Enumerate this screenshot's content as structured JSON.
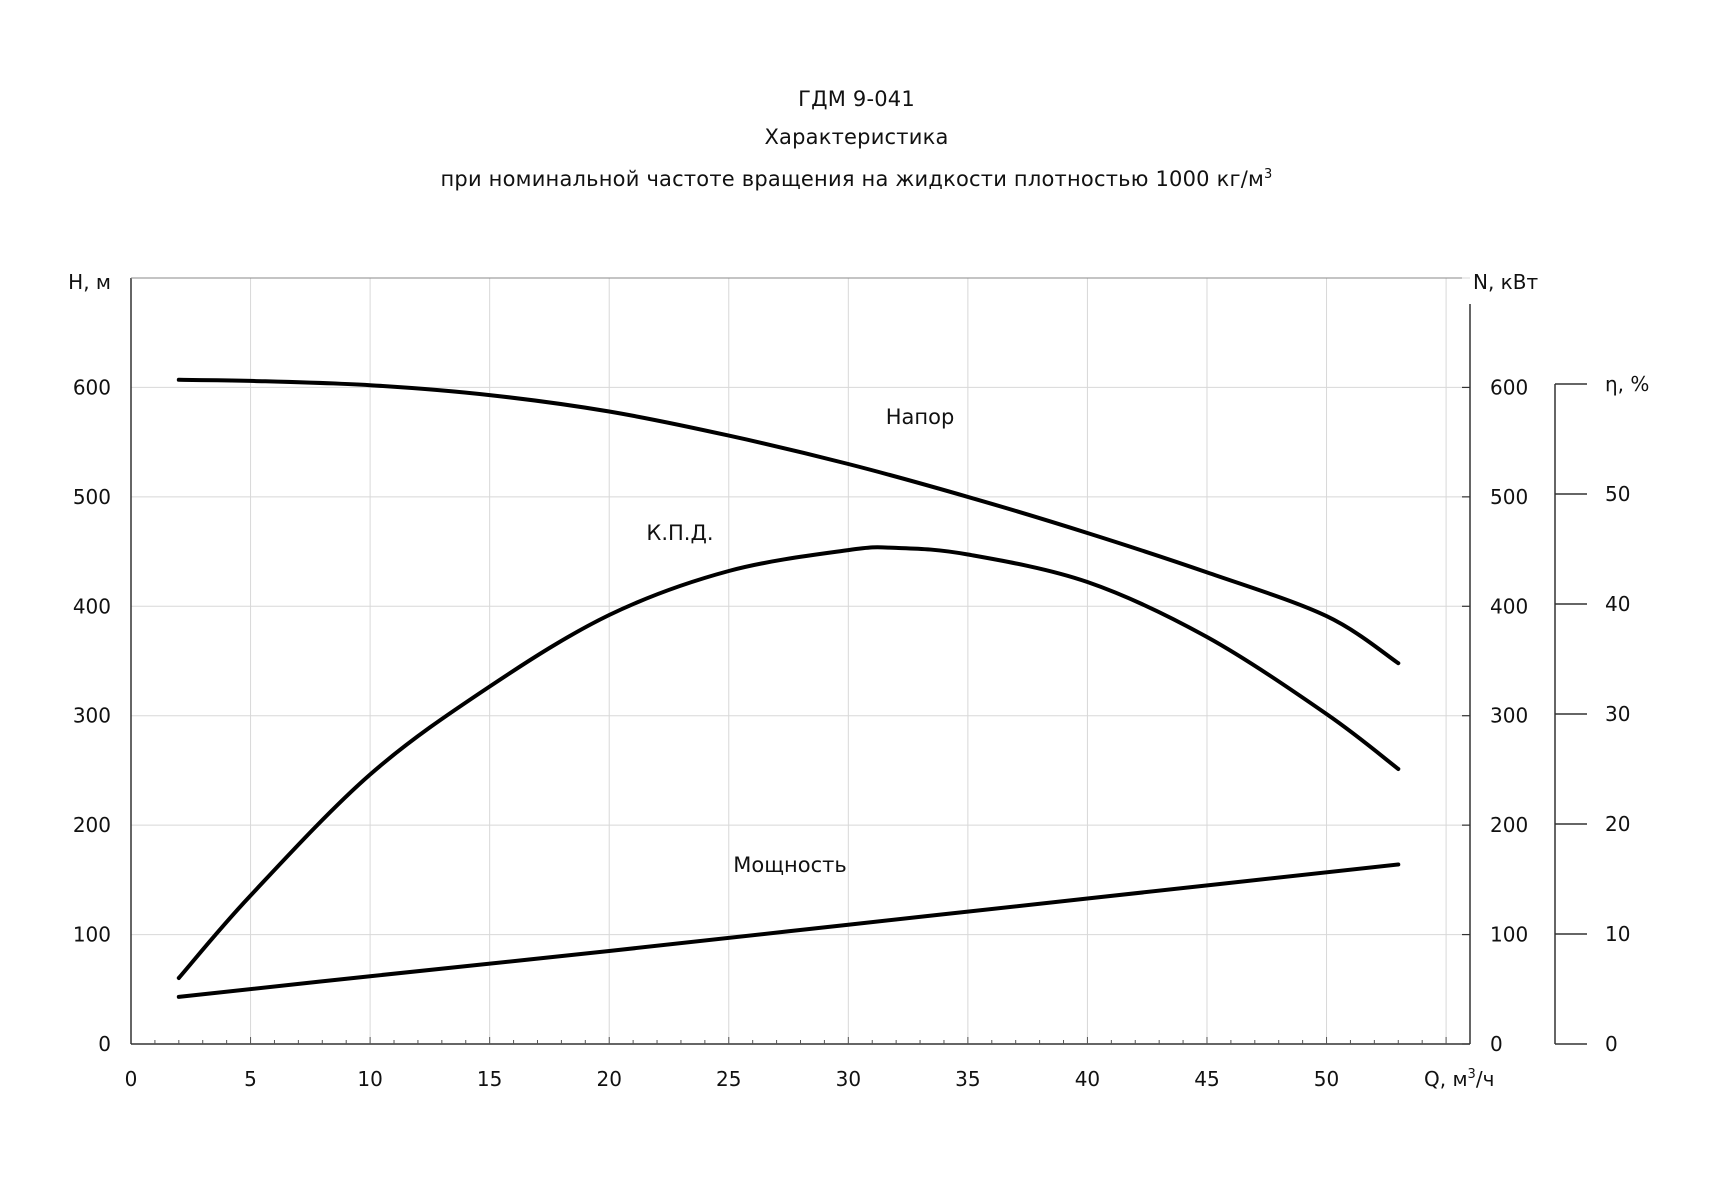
{
  "chart_data": {
    "type": "line",
    "title": "ГДМ 9-041",
    "subtitle_1": "Характеристика",
    "subtitle_2": "при номинальной  частоте  вращения  на жидкости  плотностью  1000  кг/м",
    "subtitle_2_sup": "3",
    "xlabel": "Q, м",
    "xlabel_sup": "3",
    "xlabel_suffix": "/ч",
    "ylabel_left": "Н,  м",
    "ylabel_right": "N, кВт",
    "ylabel_eff": "η, %",
    "xlim": [
      0,
      56
    ],
    "ylim": [
      0,
      700
    ],
    "eff_lim": [
      0,
      60
    ],
    "x_ticks": [
      0,
      5,
      10,
      15,
      20,
      25,
      30,
      35,
      40,
      45,
      50
    ],
    "y_ticks": [
      0,
      100,
      200,
      300,
      400,
      500,
      600
    ],
    "eff_ticks": [
      0,
      10,
      20,
      30,
      40,
      50
    ],
    "grid": true,
    "series": [
      {
        "name": "Напор",
        "axis": "left",
        "x": [
          2,
          5,
          10,
          15,
          20,
          25,
          30,
          35,
          40,
          45,
          50,
          53
        ],
        "y": [
          607,
          606,
          602,
          593,
          578,
          556,
          530,
          500,
          467,
          431,
          391,
          348
        ]
      },
      {
        "name": "К.П.Д.",
        "axis": "eff",
        "x": [
          2,
          5,
          10,
          15,
          20,
          25,
          30,
          32,
          35,
          40,
          45,
          50,
          53
        ],
        "y": [
          6,
          13.5,
          24.5,
          32.5,
          39,
          43,
          44.9,
          45.1,
          44.5,
          42,
          37,
          30,
          25
        ]
      },
      {
        "name": "Мощность",
        "axis": "right",
        "x": [
          2,
          10,
          20,
          30,
          40,
          53
        ],
        "y": [
          43,
          62,
          85,
          109,
          133,
          164
        ]
      }
    ]
  }
}
